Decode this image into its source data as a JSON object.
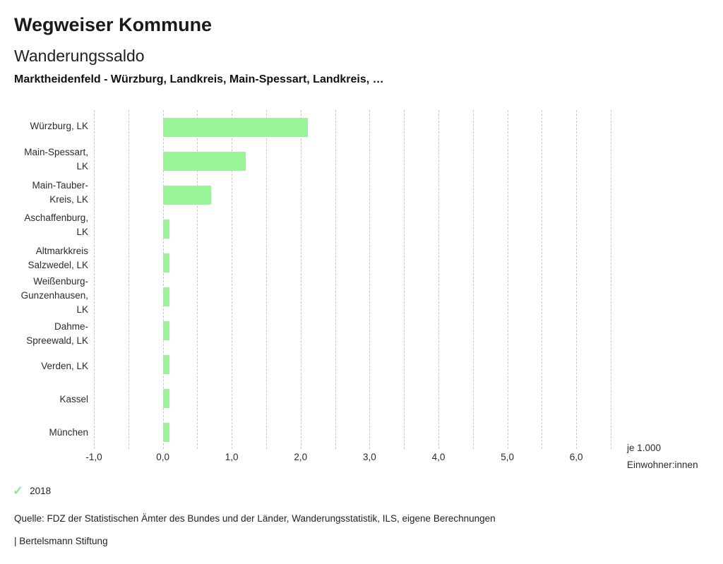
{
  "header": {
    "app_title": "Wegweiser Kommune",
    "chart_title": "Wanderungssaldo",
    "subtitle": "Marktheidenfeld - Würzburg, Landkreis, Main-Spessart, Landkreis, …"
  },
  "chart_data": {
    "type": "bar",
    "orientation": "horizontal",
    "title": "Wanderungssaldo",
    "categories": [
      "Würzburg, LK",
      "Main-Spessart, LK",
      "Main-Tauber-Kreis, LK",
      "Aschaffenburg, LK",
      "Altmarkkreis Salzwedel, LK",
      "Weißenburg-Gunzenhausen, LK",
      "Dahme-Spreewald, LK",
      "Verden, LK",
      "Kassel",
      "München"
    ],
    "series": [
      {
        "name": "2018",
        "values": [
          2.1,
          1.2,
          0.7,
          0.1,
          0.1,
          0.1,
          0.1,
          0.1,
          0.1,
          0.1
        ]
      }
    ],
    "xlim": [
      -1.0,
      6.5
    ],
    "gridline_step": 0.5,
    "x_tick_values": [
      -1,
      0,
      1,
      2,
      3,
      4,
      5,
      6
    ],
    "x_tick_labels": [
      "-1,0",
      "0,0",
      "1,0",
      "2,0",
      "3,0",
      "4,0",
      "5,0",
      "6,0"
    ],
    "xlabel": "je 1.000 Einwohner:innen",
    "unit_label_lines": [
      "je 1.000",
      "Einwohner:innen"
    ],
    "grid": true,
    "bar_color": "#98f598",
    "gridline_color": "#c7c7c7",
    "legend_position": "bottom-left"
  },
  "legend": {
    "items": [
      {
        "icon": "checkmark-icon",
        "label": "2018",
        "color": "#8fe78f"
      }
    ]
  },
  "footer": {
    "source": "Quelle: FDZ der Statistischen Ämter des Bundes und der Länder, Wanderungsstatistik, ILS, eigene Berechnungen",
    "attribution": "| Bertelsmann Stiftung"
  }
}
